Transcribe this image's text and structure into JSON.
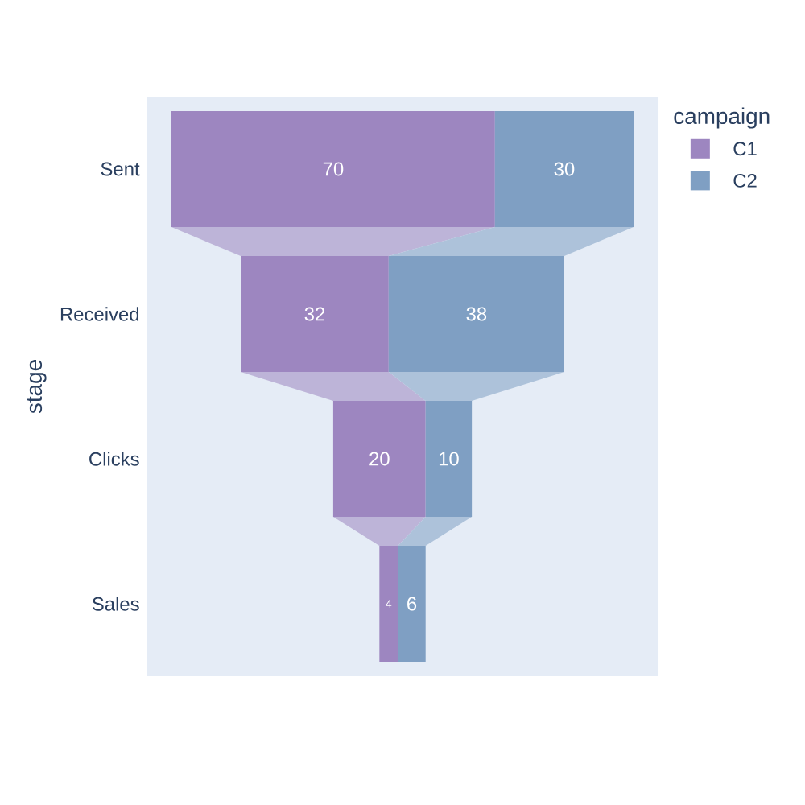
{
  "chart_data": {
    "type": "other",
    "ylabel": "stage",
    "legend_title": "campaign",
    "legend": "top right",
    "data_labels": true,
    "categories": [
      "Sent",
      "Received",
      "Clicks",
      "Sales"
    ],
    "series": [
      {
        "name": "C1",
        "color": "#9d86c0",
        "values": [
          70,
          32,
          20,
          4
        ]
      },
      {
        "name": "C2",
        "color": "#7f9fc3",
        "values": [
          30,
          38,
          10,
          6
        ]
      }
    ]
  }
}
